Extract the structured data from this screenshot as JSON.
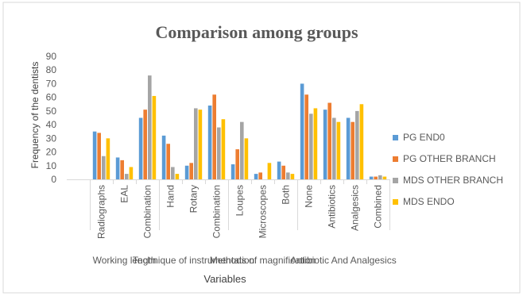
{
  "chart_data": {
    "type": "bar",
    "title": "Comparison among groups",
    "xlabel": "Variables",
    "ylabel": "Frequency of the dentists",
    "ylim": [
      0,
      90
    ],
    "yticks": [
      "0",
      "10",
      "20",
      "30",
      "40",
      "50",
      "60",
      "70",
      "80",
      "90"
    ],
    "grid": false,
    "legend_position": "right",
    "groups": [
      {
        "label": "Working length",
        "categories": [
          "Radiographs",
          "EAL",
          "Combination"
        ]
      },
      {
        "label": "Technique of instrumentation",
        "categories": [
          "Hand",
          "Rotary",
          "Combination"
        ]
      },
      {
        "label": "Methods of magnification",
        "categories": [
          "Loupes",
          "Microscopes",
          "Both"
        ]
      },
      {
        "label": "Antibiotic And Analgesics",
        "categories": [
          "None",
          "Antibiotics",
          "Analgesics",
          "Combined"
        ]
      }
    ],
    "categories": [
      "Radiographs",
      "EAL",
      "Combination",
      "Hand",
      "Rotary",
      "Combination",
      "Loupes",
      "Microscopes",
      "Both",
      "None",
      "Antibiotics",
      "Analgesics",
      "Combined"
    ],
    "series": [
      {
        "name": "PG END0",
        "color": "#5B9BD5",
        "values": [
          35,
          16,
          45,
          32,
          10,
          54,
          11,
          4,
          13,
          70,
          51,
          45,
          2
        ]
      },
      {
        "name": "PG OTHER BRANCH",
        "color": "#ED7D31",
        "values": [
          34,
          14,
          51,
          26,
          12,
          62,
          22,
          5,
          10,
          62,
          56,
          42,
          2
        ]
      },
      {
        "name": "MDS OTHER BRANCH",
        "color": "#A5A5A5",
        "values": [
          17,
          4,
          76,
          9,
          52,
          38,
          42,
          0,
          5,
          48,
          45,
          50,
          3
        ]
      },
      {
        "name": "MDS ENDO",
        "color": "#FFC000",
        "values": [
          30,
          9,
          61,
          4,
          51,
          44,
          30,
          12,
          4,
          52,
          42,
          55,
          2
        ]
      }
    ]
  }
}
